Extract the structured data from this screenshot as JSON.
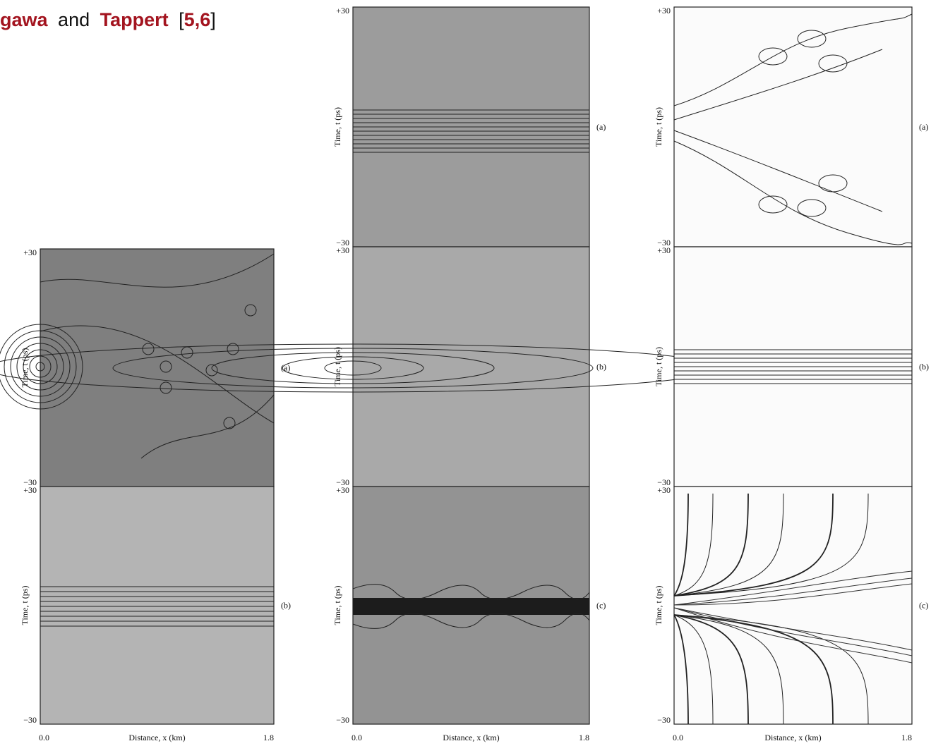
{
  "header": {
    "title_parts": [
      "gawa",
      "and",
      "Tappert",
      "[",
      "5,6",
      "]"
    ]
  },
  "figures": [
    {
      "panels": [
        {
          "y_top": "+30",
          "y_bottom": "−30",
          "y_label": "Time, t (ps)",
          "tag": "(a)"
        },
        {
          "y_top": "+30",
          "y_bottom": "−30",
          "y_label": "Time, t (ps)",
          "tag": "(b)"
        }
      ],
      "x_start": "0.0",
      "x_label": "Distance, x (km)",
      "x_end": "1.8"
    },
    {
      "panels": [
        {
          "y_top": "+30",
          "y_bottom": "−30",
          "y_label": "Time, t (ps)",
          "tag": "(a)"
        },
        {
          "y_top": "+30",
          "y_bottom": "−30",
          "y_label": "Time, t (ps)",
          "tag": "(b)"
        },
        {
          "y_top": "+30",
          "y_bottom": "−30",
          "y_label": "Time, t (ps)",
          "tag": "(c)"
        }
      ],
      "x_start": "0.0",
      "x_label": "Distance, x (km)",
      "x_end": "1.8"
    },
    {
      "panels": [
        {
          "y_top": "+30",
          "y_bottom": "−30",
          "y_label": "Time, t (ps)",
          "tag": "(a)"
        },
        {
          "y_top": "+30",
          "y_bottom": "−30",
          "y_label": "Time, t (ps)",
          "tag": "(b)"
        },
        {
          "y_top": "+30",
          "y_bottom": "−30",
          "y_label": "Time, t (ps)",
          "tag": "(c)"
        }
      ],
      "x_start": "0.0",
      "x_label": "Distance, x (km)",
      "x_end": "1.8"
    }
  ]
}
